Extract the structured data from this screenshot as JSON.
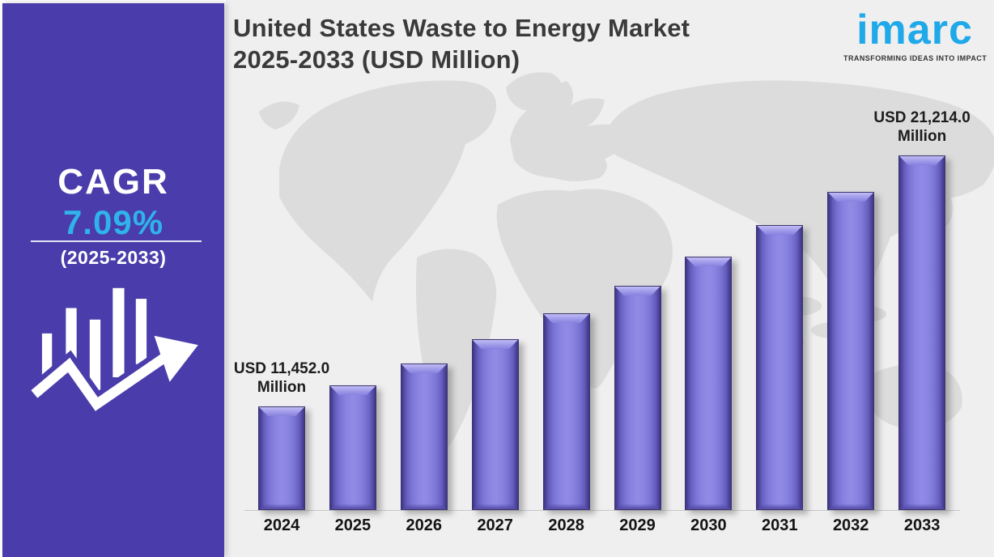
{
  "header": {
    "title_line1": "United States Waste to Energy Market",
    "title_line2": "2025-2033 (USD Million)"
  },
  "logo": {
    "wordmark": "imarc",
    "tagline": "TRANSFORMING IDEAS INTO IMPACT",
    "brand_color": "#1fa9e8"
  },
  "sidebar": {
    "cagr_label": "CAGR",
    "cagr_value": "7.09%",
    "cagr_period": "(2025-2033)",
    "background_color": "#4a3dab",
    "accent_color": "#2fb3ea",
    "icon": "growth-trend-arrow-icon"
  },
  "chart_data": {
    "type": "bar",
    "title": "United States Waste to Energy Market 2025-2033 (USD Million)",
    "unit": "USD Million",
    "categories": [
      "2024",
      "2025",
      "2026",
      "2027",
      "2028",
      "2029",
      "2030",
      "2031",
      "2032",
      "2033"
    ],
    "values": [
      11452.0,
      12264.3,
      13133.9,
      14064.9,
      15062.1,
      16130.0,
      17273.6,
      18498.3,
      19809.8,
      21214.0
    ],
    "labeled_values": {
      "2024": "USD 11,452.0 Million",
      "2033": "USD 21,214.0 Million"
    },
    "value_note": "Only the 2024 and 2033 bars carry printed values; intermediate bar values are estimated from the stated 7.09% CAGR (2025-2033).",
    "cagr": "7.09%",
    "cagr_period": "2025-2033",
    "bar_color": "#8b85e2",
    "xlabel": "",
    "ylabel": "",
    "y_axis_visible": false,
    "gridlines": false,
    "legend": "none",
    "background": "light gray world-map watermark"
  }
}
